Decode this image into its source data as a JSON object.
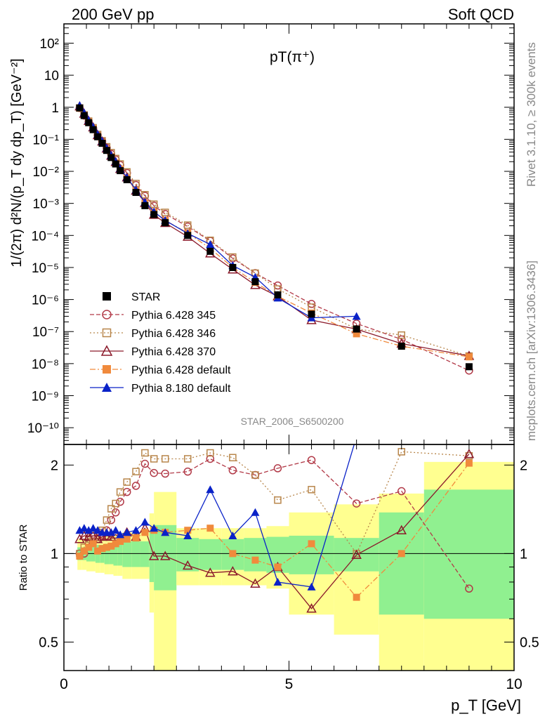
{
  "header": {
    "left": "200 GeV pp",
    "right": "Soft QCD"
  },
  "side": {
    "rivet": "Rivet 3.1.10, ≥ 300k events",
    "mcplots": "mcplots.cern.ch [arXiv:1306.3436]"
  },
  "analysis_tag": "STAR_2006_S6500200",
  "chart_data": [
    {
      "type": "line",
      "panel": "main",
      "title": "pT(π⁺)",
      "xlabel": "p_T [GeV]",
      "ylabel": "1/(2π) d²N/(p_T dy dp_T) [GeV⁻²]",
      "xlim": [
        0,
        10
      ],
      "ylim": [
        3e-11,
        400
      ],
      "yscale": "log",
      "ytick_labels": [
        "10⁻¹⁰",
        "10⁻⁹",
        "10⁻⁸",
        "10⁻⁷",
        "10⁻⁶",
        "10⁻⁵",
        "10⁻⁴",
        "10⁻³",
        "10⁻²",
        "10⁻¹",
        "1",
        "10",
        "10²"
      ],
      "legend_position": "lower-left",
      "x": [
        0.35,
        0.45,
        0.55,
        0.65,
        0.75,
        0.85,
        0.95,
        1.05,
        1.15,
        1.25,
        1.4,
        1.6,
        1.8,
        2.0,
        2.25,
        2.75,
        3.25,
        3.75,
        4.25,
        4.75,
        5.5,
        6.5,
        7.5,
        9.0
      ],
      "series": [
        {
          "name": "STAR",
          "color": "#000000",
          "marker": "square",
          "values": [
            1.0,
            0.6,
            0.36,
            0.22,
            0.13,
            0.079,
            0.048,
            0.029,
            0.018,
            0.0112,
            0.0055,
            0.0022,
            0.00095,
            0.00042,
            0.00019,
            4.3e-05,
            1.1e-05,
            3.1e-06,
            1.15e-06,
            4.5e-07,
            1.2e-07,
            2.8e-08,
            7.5e-09,
            1.4e-09
          ],
          "values_in_units": "ratio-scaled",
          "abs": [
            0.95,
            0.55,
            0.33,
            0.2,
            0.12,
            0.075,
            0.045,
            0.027,
            0.017,
            0.0105,
            0.0055,
            0.0022,
            0.00085,
            0.00045,
            0.00025,
            0.0001,
            3.2e-05,
            1e-05,
            3.6e-06,
            1.4e-06,
            3.5e-07,
            1.2e-07,
            3.5e-08,
            8e-09
          ]
        },
        {
          "name": "Pythia 6.428 345",
          "color": "#b23a48",
          "marker": "circle-open",
          "dash": "6,3",
          "values": [
            1.0,
            1.0,
            1.08,
            1.1,
            1.12,
            1.15,
            1.2,
            1.3,
            1.38,
            1.5,
            1.62,
            1.7,
            2.02,
            1.88,
            1.87,
            1.9,
            2.1,
            1.92,
            1.85,
            1.95,
            2.08,
            1.48,
            1.63,
            0.76
          ]
        },
        {
          "name": "Pythia 6.428 346",
          "color": "#b8864b",
          "marker": "square-open",
          "dash": "2,3",
          "values": [
            1.0,
            1.05,
            1.12,
            1.15,
            1.18,
            1.2,
            1.3,
            1.42,
            1.48,
            1.62,
            1.75,
            1.9,
            2.2,
            2.1,
            2.1,
            2.1,
            2.2,
            2.12,
            1.85,
            1.52,
            1.65,
            1.0,
            2.22,
            2.15
          ]
        },
        {
          "name": "Pythia 6.428 370",
          "color": "#8b1a2b",
          "marker": "triangle-open",
          "dash": "",
          "values": [
            1.12,
            1.15,
            1.14,
            1.18,
            1.12,
            1.14,
            1.15,
            1.14,
            1.16,
            1.13,
            1.18,
            1.14,
            1.22,
            0.98,
            0.98,
            0.91,
            0.86,
            0.87,
            0.79,
            0.9,
            0.65,
            0.99,
            1.2,
            2.18
          ]
        },
        {
          "name": "Pythia 6.428 default",
          "color": "#f08a3c",
          "marker": "square",
          "dash": "8,3,2,3",
          "values": [
            0.98,
            1.02,
            1.05,
            1.08,
            1.02,
            1.04,
            1.05,
            1.06,
            1.08,
            1.1,
            1.12,
            1.13,
            1.18,
            1.2,
            1.18,
            1.2,
            1.22,
            1.0,
            0.95,
            0.9,
            1.08,
            0.71,
            1.0,
            2.03
          ]
        },
        {
          "name": "Pythia 8.180 default",
          "color": "#0a22c8",
          "marker": "triangle",
          "dash": "",
          "values": [
            1.2,
            1.22,
            1.2,
            1.22,
            1.2,
            1.18,
            1.18,
            1.18,
            1.2,
            1.16,
            1.18,
            1.2,
            1.28,
            1.22,
            1.18,
            1.15,
            1.65,
            1.15,
            1.38,
            0.8,
            0.77,
            2.5,
            null,
            null
          ]
        }
      ]
    },
    {
      "type": "line",
      "panel": "ratio",
      "xlabel": "p_T [GeV]",
      "ylabel": "Ratio to STAR",
      "xlim": [
        0,
        10
      ],
      "ylim": [
        0.4,
        2.35
      ],
      "yscale": "linear",
      "ytick_labels": [
        "0.5",
        "1",
        "2"
      ],
      "xtick_labels": [
        "0",
        "5",
        "10"
      ],
      "band_edges": [
        0.3,
        0.4,
        0.5,
        0.6,
        0.7,
        0.8,
        0.9,
        1.0,
        1.1,
        1.2,
        1.3,
        1.5,
        1.7,
        1.9,
        2.0,
        2.5,
        3.0,
        3.5,
        4.0,
        4.5,
        5.0,
        6.0,
        7.0,
        8.0,
        10.0
      ],
      "band_green_lo": [
        0.95,
        0.95,
        0.94,
        0.94,
        0.93,
        0.93,
        0.92,
        0.92,
        0.91,
        0.91,
        0.9,
        0.9,
        0.9,
        0.8,
        0.75,
        0.87,
        0.88,
        0.88,
        0.87,
        0.86,
        0.85,
        0.87,
        0.62,
        0.6
      ],
      "band_green_hi": [
        1.05,
        1.05,
        1.06,
        1.06,
        1.07,
        1.07,
        1.08,
        1.08,
        1.09,
        1.09,
        1.1,
        1.1,
        1.1,
        1.2,
        1.25,
        1.13,
        1.12,
        1.12,
        1.13,
        1.14,
        1.15,
        1.13,
        1.38,
        1.65
      ],
      "band_yellow_lo": [
        0.88,
        0.88,
        0.87,
        0.87,
        0.86,
        0.86,
        0.85,
        0.85,
        0.84,
        0.84,
        0.82,
        0.82,
        0.82,
        0.63,
        0.38,
        0.78,
        0.78,
        0.78,
        0.78,
        0.76,
        0.62,
        0.53,
        0.4,
        0.4
      ],
      "band_yellow_hi": [
        1.12,
        1.12,
        1.13,
        1.13,
        1.14,
        1.14,
        1.15,
        1.15,
        1.16,
        1.16,
        1.18,
        1.18,
        1.18,
        1.37,
        1.62,
        1.22,
        1.22,
        1.22,
        1.22,
        1.24,
        1.38,
        1.47,
        1.6,
        2.05
      ]
    }
  ],
  "colors": {
    "green_band": "#90f090",
    "yellow_band": "#ffff90"
  }
}
